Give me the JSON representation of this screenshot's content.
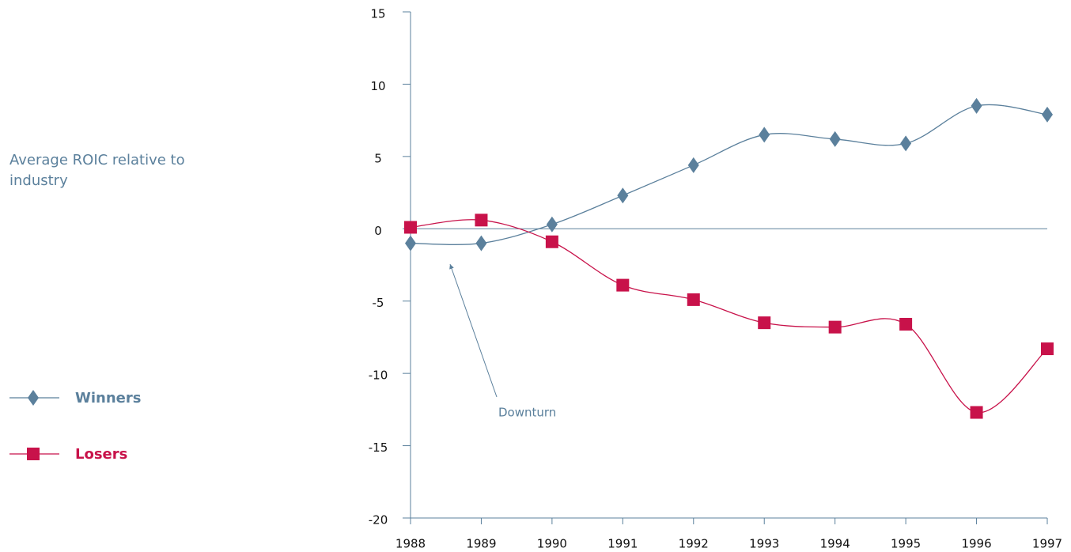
{
  "chart_data": {
    "type": "line",
    "ylabel": "Average ROIC relative to industry",
    "annotation": "Downturn",
    "categories": [
      "1988",
      "1989",
      "1990",
      "1991",
      "1992",
      "1993",
      "1994",
      "1995",
      "1996",
      "1997"
    ],
    "series": [
      {
        "name": "Winners",
        "color": "#5b809c",
        "marker": "diamond",
        "values": [
          -1.0,
          -1.0,
          0.3,
          2.3,
          4.4,
          6.5,
          6.2,
          5.9,
          8.5,
          7.9
        ]
      },
      {
        "name": "Losers",
        "color": "#c8124a",
        "marker": "square",
        "values": [
          0.1,
          0.6,
          -0.9,
          -3.9,
          -4.9,
          -6.5,
          -6.8,
          -6.6,
          -12.7,
          -8.3
        ]
      }
    ],
    "ylim": [
      -20,
      15
    ],
    "yticks": [
      -20,
      -15,
      -10,
      -5,
      0,
      5,
      10,
      15
    ],
    "zero_line": true,
    "legend": "left"
  }
}
